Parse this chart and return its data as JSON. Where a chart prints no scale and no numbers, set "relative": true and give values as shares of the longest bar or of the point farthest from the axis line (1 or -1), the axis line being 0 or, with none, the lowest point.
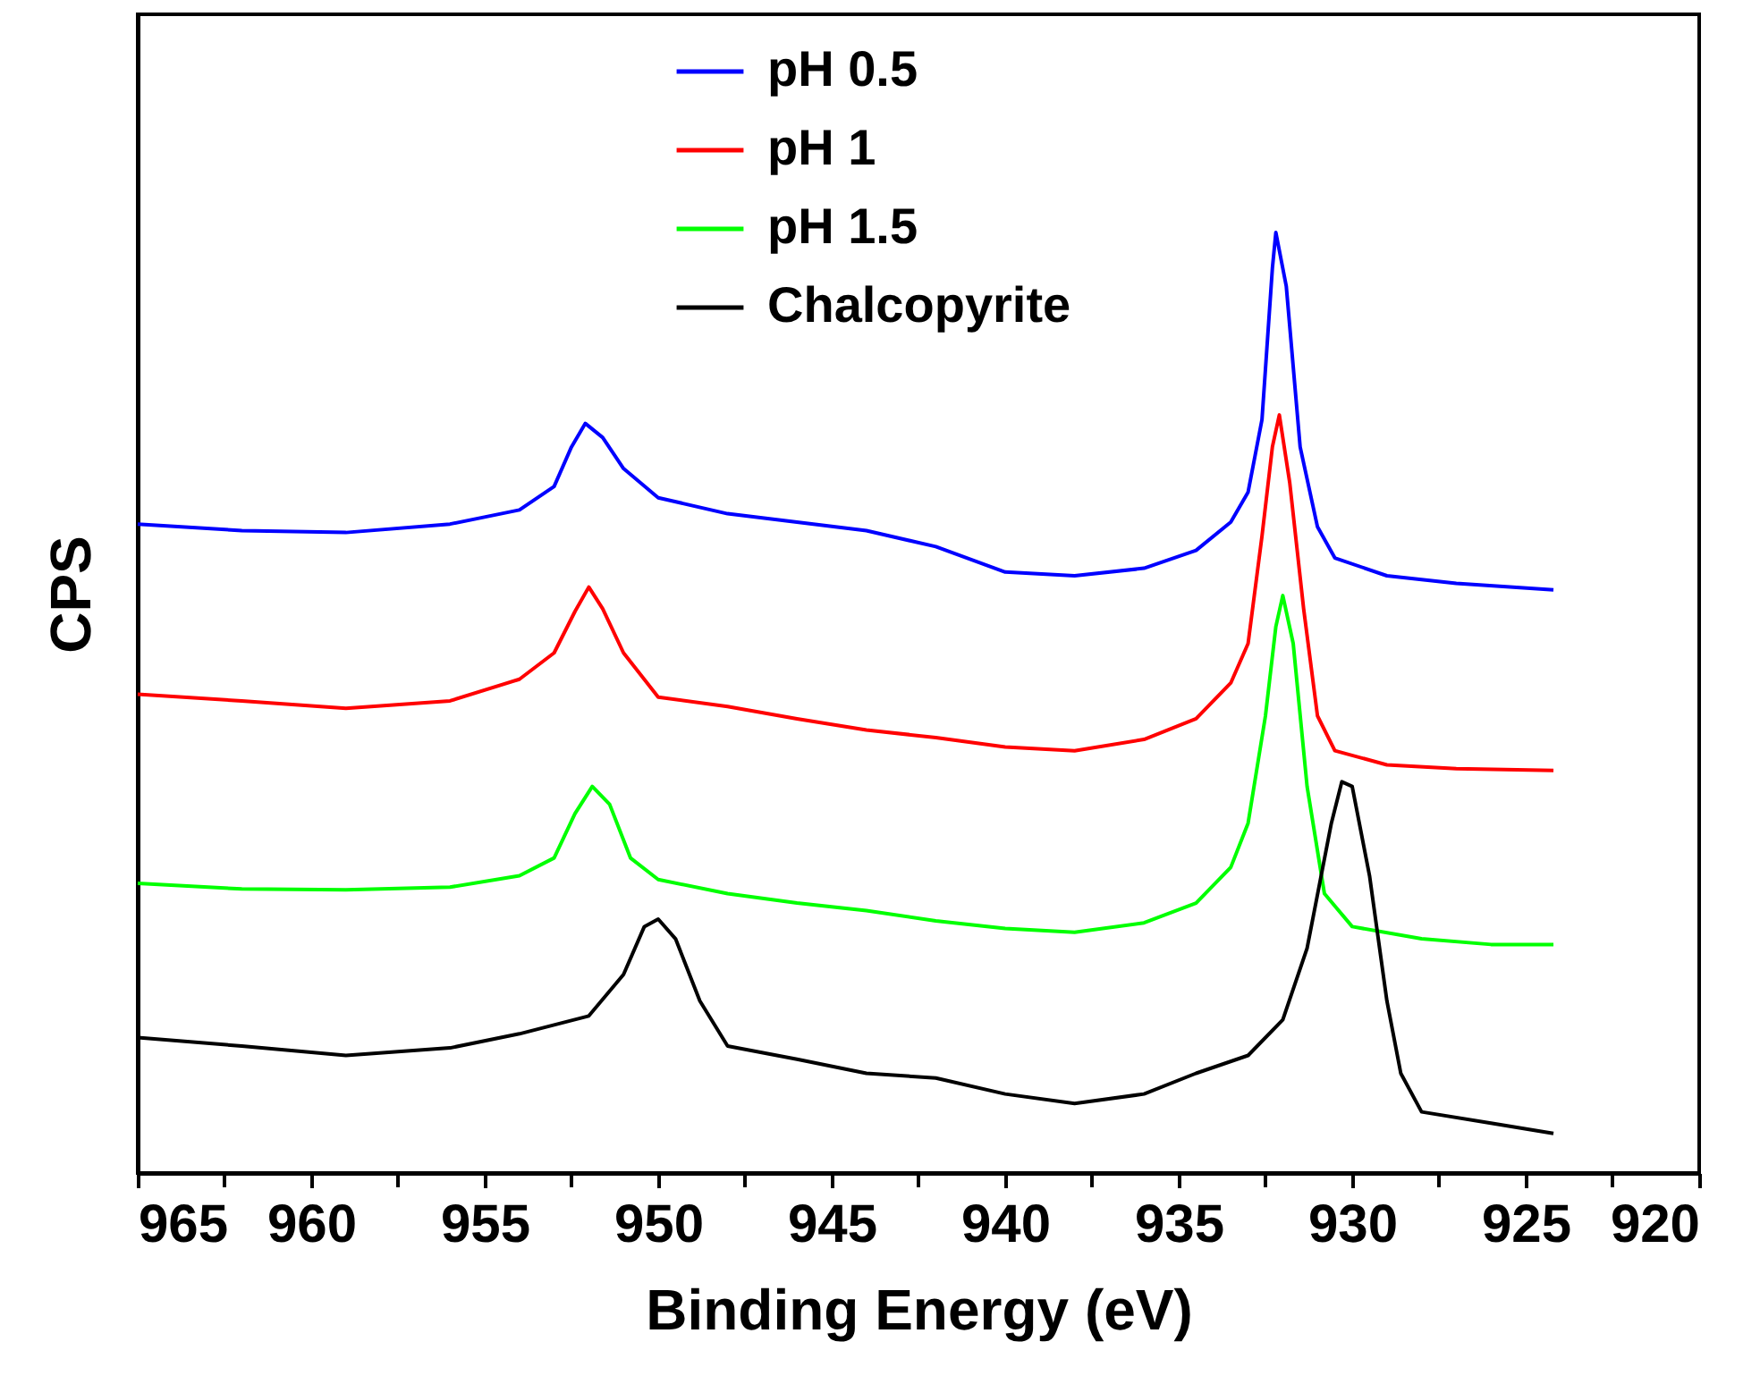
{
  "chart_data": {
    "type": "line",
    "xlabel": "Binding Energy (eV)",
    "ylabel": "CPS",
    "relative": true,
    "legend": "top",
    "grid": false,
    "marker": "none",
    "line_style": "solid",
    "xlim": [
      965,
      920
    ],
    "xticks": [
      965,
      {
        "value": 962.5,
        "label": null
      },
      960,
      {
        "value": 957.5,
        "label": null
      },
      955,
      {
        "value": 952.5,
        "label": null
      },
      950,
      {
        "value": 947.5,
        "label": null
      },
      945,
      {
        "value": 942.5,
        "label": null
      },
      940,
      {
        "value": 937.5,
        "label": null
      },
      935,
      {
        "value": 932.5,
        "label": null
      },
      930,
      {
        "value": 927.5,
        "label": null
      },
      925,
      {
        "value": 922.5,
        "label": null
      },
      920
    ],
    "x": [
      965,
      962,
      959,
      956,
      954,
      953,
      952.5,
      952.1,
      951.6,
      951,
      950,
      948,
      946,
      944,
      942,
      940,
      938,
      936,
      934.5,
      933.5,
      933,
      932.6,
      932.3,
      932.2,
      931.9,
      931.5,
      931,
      930.5,
      929,
      927,
      924.2
    ],
    "series": [
      {
        "name": "pH 0.5",
        "color": "#0000ff",
        "values": [
          0.69,
          0.683,
          0.681,
          0.69,
          0.705,
          0.73,
          0.772,
          0.797,
          0.782,
          0.749,
          0.718,
          0.701,
          0.692,
          0.683,
          0.666,
          0.639,
          0.635,
          0.643,
          0.662,
          0.692,
          0.724,
          0.801,
          0.962,
          1,
          0.943,
          0.772,
          0.687,
          0.654,
          0.635,
          0.627,
          0.62
        ]
      },
      {
        "name": "pH 1",
        "color": "#ff0000",
        "x": [
          965,
          962,
          959,
          956,
          954,
          953,
          952.4,
          952,
          951.6,
          951,
          950,
          948,
          946,
          944,
          942,
          940,
          938,
          936,
          934.5,
          933.5,
          933,
          932.6,
          932.3,
          932.1,
          931.8,
          931.4,
          931,
          930.5,
          929,
          927,
          924.2
        ],
        "values": [
          0.509,
          0.502,
          0.494,
          0.502,
          0.525,
          0.553,
          0.597,
          0.623,
          0.6,
          0.553,
          0.506,
          0.496,
          0.483,
          0.471,
          0.463,
          0.453,
          0.449,
          0.461,
          0.483,
          0.521,
          0.563,
          0.677,
          0.772,
          0.806,
          0.734,
          0.6,
          0.486,
          0.449,
          0.434,
          0.43,
          0.428
        ]
      },
      {
        "name": "pH 1.5",
        "color": "#00ff00",
        "x": [
          965,
          962,
          959,
          956,
          954,
          953,
          952.4,
          951.9,
          951.4,
          950.8,
          950,
          948,
          946,
          944,
          942,
          940,
          938,
          936,
          934.5,
          933.5,
          933,
          932.5,
          932.2,
          932,
          931.7,
          931.3,
          930.8,
          930,
          928,
          926,
          924.2
        ],
        "values": [
          0.308,
          0.302,
          0.301,
          0.304,
          0.316,
          0.335,
          0.382,
          0.411,
          0.392,
          0.335,
          0.312,
          0.297,
          0.287,
          0.279,
          0.268,
          0.26,
          0.256,
          0.266,
          0.287,
          0.325,
          0.372,
          0.486,
          0.581,
          0.614,
          0.563,
          0.411,
          0.297,
          0.262,
          0.249,
          0.243,
          0.243
        ]
      },
      {
        "name": "Chalcopyrite",
        "color": "#000000",
        "x": [
          965,
          962,
          959,
          956,
          954,
          952,
          951,
          950.4,
          950,
          949.5,
          948.8,
          948,
          946,
          944,
          942,
          940,
          938,
          936,
          934.5,
          933,
          932,
          931.3,
          930.6,
          930.3,
          930,
          929.5,
          929,
          928.6,
          928,
          926,
          924.2
        ],
        "values": [
          0.144,
          0.135,
          0.125,
          0.133,
          0.148,
          0.167,
          0.211,
          0.262,
          0.27,
          0.249,
          0.183,
          0.135,
          0.121,
          0.106,
          0.101,
          0.084,
          0.074,
          0.084,
          0.106,
          0.125,
          0.163,
          0.239,
          0.372,
          0.416,
          0.411,
          0.316,
          0.183,
          0.106,
          0.065,
          0.053,
          0.042
        ]
      }
    ]
  }
}
